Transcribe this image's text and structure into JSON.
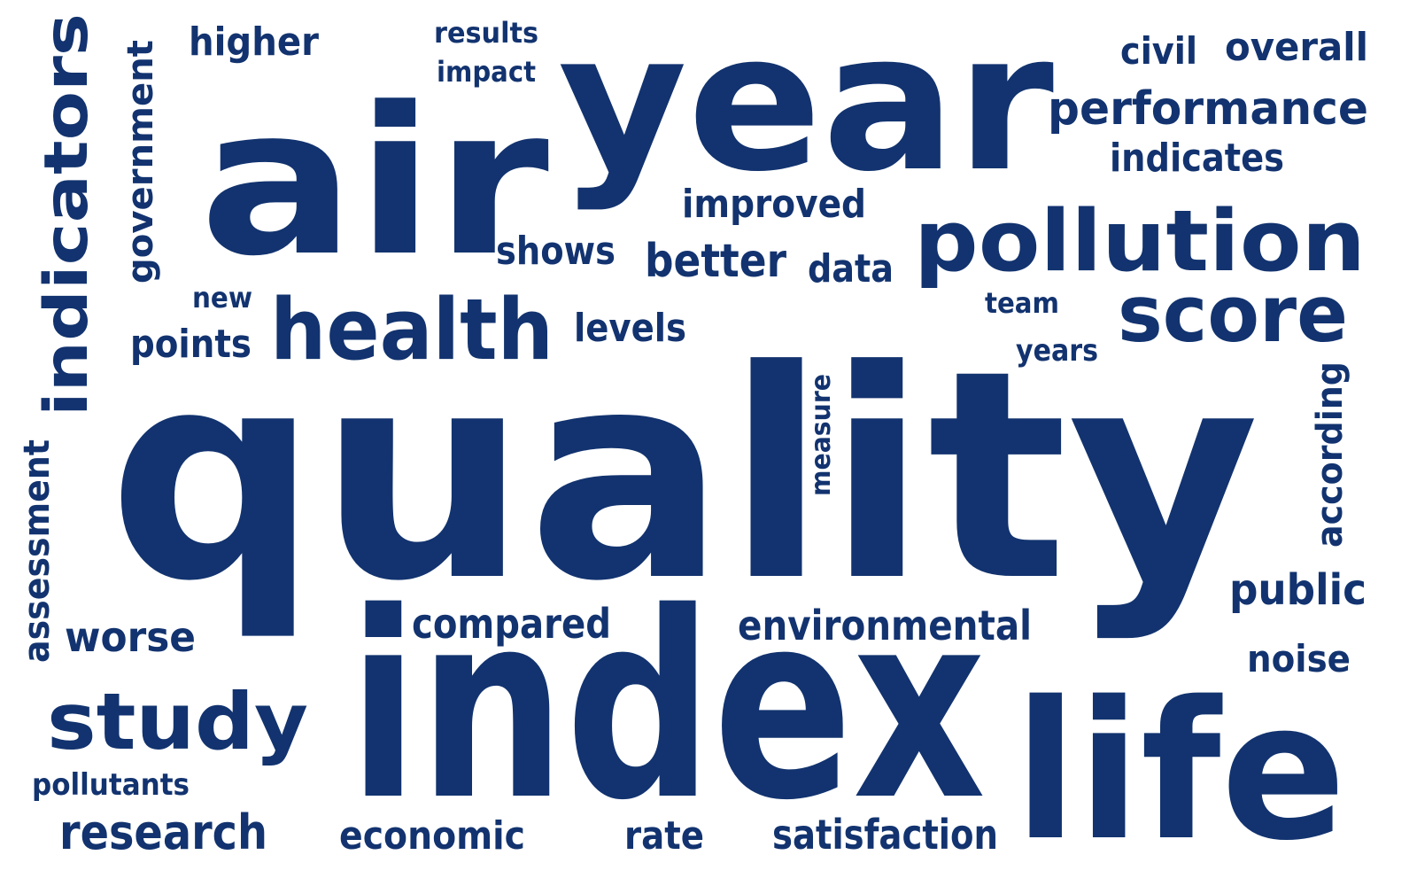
{
  "color": "#12336f",
  "words": [
    "quality",
    "index",
    "air",
    "year",
    "life",
    "pollution",
    "health",
    "indicators",
    "score",
    "study",
    "performance",
    "research",
    "compared",
    "environmental",
    "satisfaction",
    "economic",
    "rate",
    "public",
    "noise",
    "improved",
    "better",
    "shows",
    "data",
    "levels",
    "points",
    "worse",
    "higher",
    "overall",
    "civil",
    "indicates",
    "government",
    "assessment",
    "according",
    "measure",
    "results",
    "impact",
    "new",
    "team",
    "years",
    "pollutants"
  ]
}
